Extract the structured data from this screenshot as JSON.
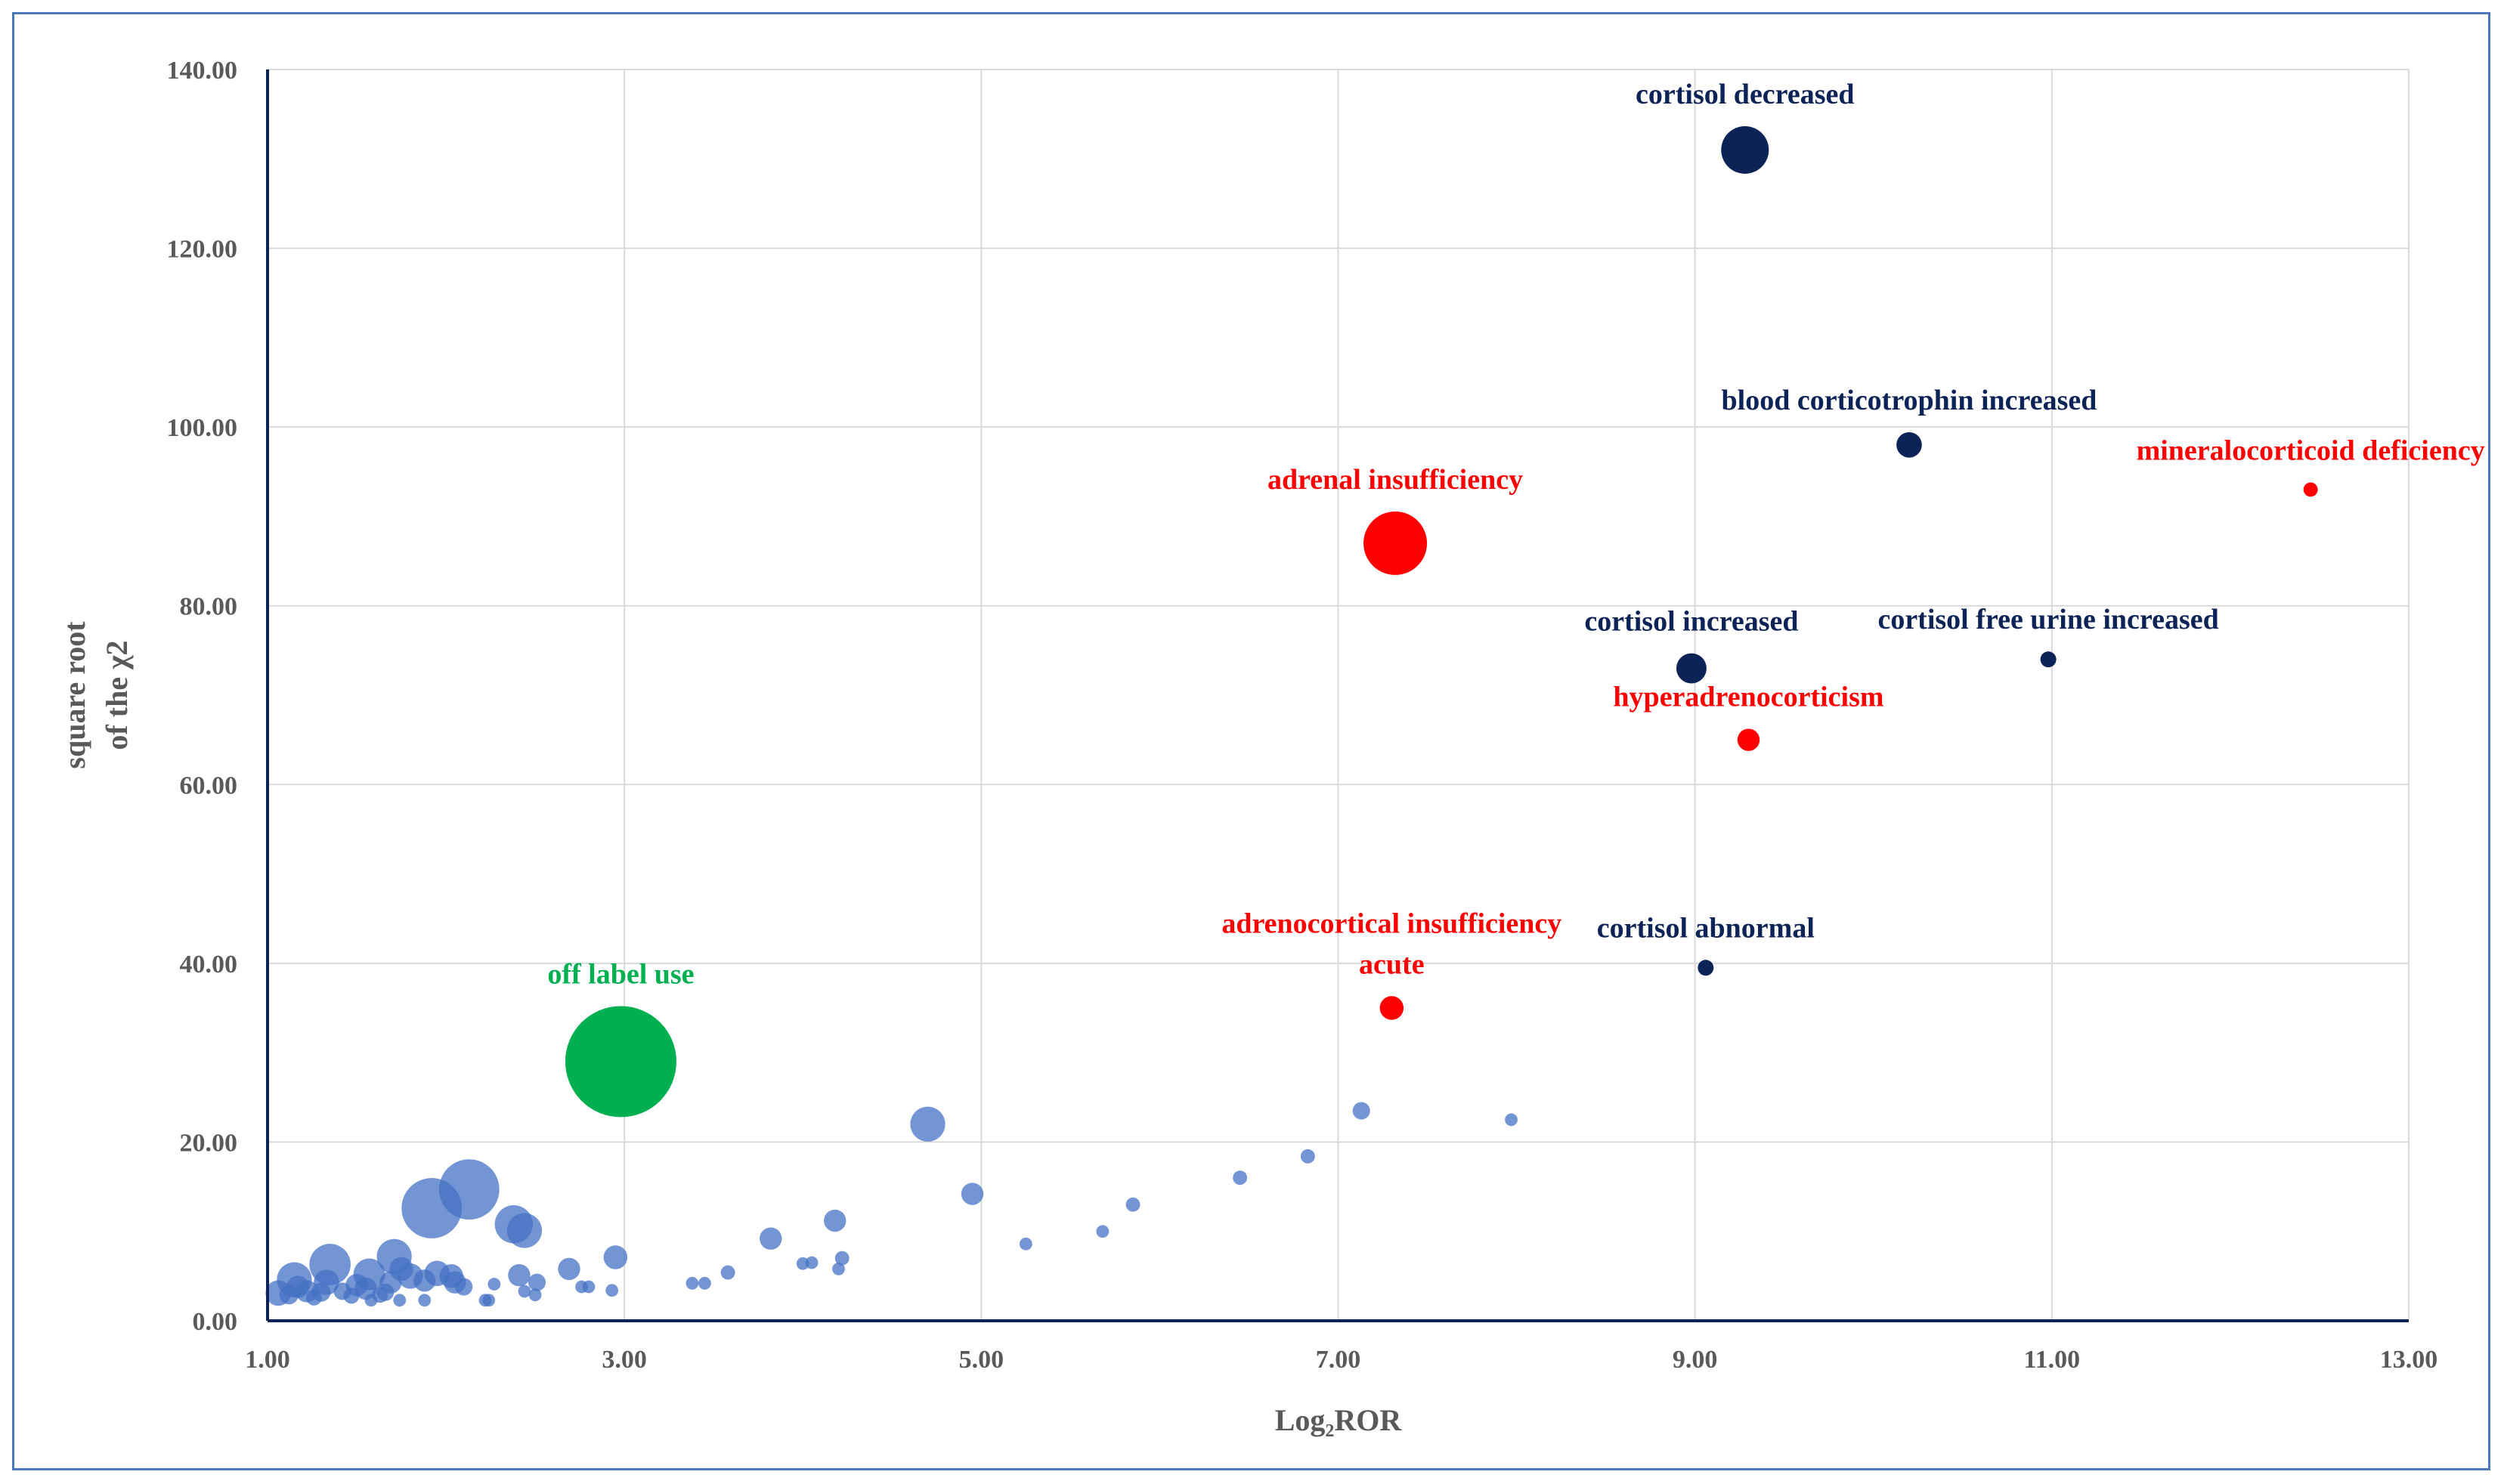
{
  "chart_data": {
    "type": "scatter",
    "subtype": "bubble",
    "xlabel": "Log₂ROR",
    "ylabel_lines": [
      "square root",
      "of the χ2"
    ],
    "xlim": [
      1,
      13
    ],
    "ylim": [
      0,
      140
    ],
    "x_ticks": [
      "1.00",
      "3.00",
      "5.00",
      "7.00",
      "9.00",
      "11.00",
      "13.00"
    ],
    "y_ticks": [
      "0.00",
      "20.00",
      "40.00",
      "60.00",
      "80.00",
      "100.00",
      "120.00",
      "140.00"
    ],
    "grid": true,
    "colors": {
      "background_points": "#4472c4",
      "endocrine_lab": "#0b2357",
      "adrenal_disorder": "#ff0000",
      "off_label": "#00b050",
      "gridline": "#d9d9d9",
      "axis": "#0b2357"
    },
    "highlighted": [
      {
        "label_lines": [
          "cortisol decreased"
        ],
        "x": 9.28,
        "y": 131,
        "r": 15,
        "color": "#0b2357",
        "label_anchor": "above"
      },
      {
        "label_lines": [
          "blood corticotrophin increased"
        ],
        "x": 10.2,
        "y": 98,
        "r": 8,
        "color": "#0b2357",
        "label_anchor": "above"
      },
      {
        "label_lines": [
          "mineralocorticoid deficiency"
        ],
        "x": 12.45,
        "y": 93,
        "r": 4.5,
        "color": "#ff0000",
        "label_anchor": "above"
      },
      {
        "label_lines": [
          "adrenal insufficiency"
        ],
        "x": 7.32,
        "y": 87,
        "r": 20,
        "color": "#ff0000",
        "label_anchor": "above"
      },
      {
        "label_lines": [
          "cortisol increased"
        ],
        "x": 8.98,
        "y": 73,
        "r": 9.5,
        "color": "#0b2357",
        "label_anchor": "above"
      },
      {
        "label_lines": [
          "cortisol free urine increased"
        ],
        "x": 10.98,
        "y": 74,
        "r": 5,
        "color": "#0b2357",
        "label_anchor": "above"
      },
      {
        "label_lines": [
          "hyperadrenocorticism"
        ],
        "x": 9.3,
        "y": 65,
        "r": 7,
        "color": "#ff0000",
        "label_anchor": "above"
      },
      {
        "label_lines": [
          "cortisol abnormal"
        ],
        "x": 9.06,
        "y": 39.5,
        "r": 5,
        "color": "#0b2357",
        "label_anchor": "above"
      },
      {
        "label_lines": [
          "adrenocortical insufficiency",
          "acute"
        ],
        "x": 7.3,
        "y": 35,
        "r": 7.5,
        "color": "#ff0000",
        "label_anchor": "above"
      },
      {
        "label_lines": [
          "off label use"
        ],
        "x": 2.98,
        "y": 29,
        "r": 35,
        "color": "#00b050",
        "label_anchor": "above"
      }
    ],
    "background_series": [
      {
        "x": 4.7,
        "y": 22,
        "r": 11
      },
      {
        "x": 4.95,
        "y": 14.2,
        "r": 7
      },
      {
        "x": 5.25,
        "y": 8.6,
        "r": 4
      },
      {
        "x": 5.68,
        "y": 10,
        "r": 4
      },
      {
        "x": 5.85,
        "y": 13,
        "r": 4.5
      },
      {
        "x": 6.45,
        "y": 16,
        "r": 4.5
      },
      {
        "x": 6.83,
        "y": 18.4,
        "r": 4.5
      },
      {
        "x": 7.13,
        "y": 23.5,
        "r": 5.5
      },
      {
        "x": 7.97,
        "y": 22.5,
        "r": 4
      },
      {
        "x": 4.18,
        "y": 11.2,
        "r": 7
      },
      {
        "x": 4.22,
        "y": 7,
        "r": 4.5
      },
      {
        "x": 4.2,
        "y": 5.8,
        "r": 4
      },
      {
        "x": 4.05,
        "y": 6.5,
        "r": 4
      },
      {
        "x": 4.0,
        "y": 6.4,
        "r": 4
      },
      {
        "x": 3.82,
        "y": 9.2,
        "r": 7
      },
      {
        "x": 3.58,
        "y": 5.4,
        "r": 4.5
      },
      {
        "x": 3.45,
        "y": 4.2,
        "r": 4
      },
      {
        "x": 3.38,
        "y": 4.2,
        "r": 4
      },
      {
        "x": 2.95,
        "y": 7.1,
        "r": 7.5
      },
      {
        "x": 2.93,
        "y": 3.4,
        "r": 4
      },
      {
        "x": 2.8,
        "y": 3.8,
        "r": 4
      },
      {
        "x": 2.76,
        "y": 3.8,
        "r": 4
      },
      {
        "x": 2.69,
        "y": 5.8,
        "r": 7
      },
      {
        "x": 2.51,
        "y": 4.3,
        "r": 5.5
      },
      {
        "x": 2.5,
        "y": 2.9,
        "r": 4
      },
      {
        "x": 2.44,
        "y": 3.3,
        "r": 4
      },
      {
        "x": 2.41,
        "y": 5.1,
        "r": 7
      },
      {
        "x": 2.44,
        "y": 10.1,
        "r": 11
      },
      {
        "x": 2.38,
        "y": 10.8,
        "r": 12
      },
      {
        "x": 2.27,
        "y": 4.1,
        "r": 4
      },
      {
        "x": 2.24,
        "y": 2.3,
        "r": 4
      },
      {
        "x": 2.22,
        "y": 2.3,
        "r": 4
      },
      {
        "x": 2.13,
        "y": 14.7,
        "r": 19
      },
      {
        "x": 2.1,
        "y": 3.8,
        "r": 5.5
      },
      {
        "x": 2.05,
        "y": 4.3,
        "r": 7
      },
      {
        "x": 2.03,
        "y": 5,
        "r": 7.5
      },
      {
        "x": 1.95,
        "y": 5.3,
        "r": 8
      },
      {
        "x": 1.92,
        "y": 12.6,
        "r": 19
      },
      {
        "x": 1.88,
        "y": 4.5,
        "r": 7
      },
      {
        "x": 1.88,
        "y": 2.3,
        "r": 4
      },
      {
        "x": 1.8,
        "y": 5,
        "r": 8
      },
      {
        "x": 1.75,
        "y": 5.8,
        "r": 7.5
      },
      {
        "x": 1.74,
        "y": 2.3,
        "r": 4
      },
      {
        "x": 1.71,
        "y": 7.2,
        "r": 11
      },
      {
        "x": 1.69,
        "y": 4.3,
        "r": 7
      },
      {
        "x": 1.66,
        "y": 3.2,
        "r": 5.5
      },
      {
        "x": 1.63,
        "y": 2.9,
        "r": 5
      },
      {
        "x": 1.58,
        "y": 2.3,
        "r": 4
      },
      {
        "x": 1.57,
        "y": 5.2,
        "r": 10
      },
      {
        "x": 1.55,
        "y": 3.6,
        "r": 7
      },
      {
        "x": 1.5,
        "y": 4,
        "r": 7
      },
      {
        "x": 1.47,
        "y": 2.8,
        "r": 5
      },
      {
        "x": 1.42,
        "y": 3.3,
        "r": 5.5
      },
      {
        "x": 1.35,
        "y": 6.3,
        "r": 13
      },
      {
        "x": 1.33,
        "y": 4.3,
        "r": 8
      },
      {
        "x": 1.3,
        "y": 3.2,
        "r": 6
      },
      {
        "x": 1.26,
        "y": 2.6,
        "r": 5
      },
      {
        "x": 1.22,
        "y": 3.3,
        "r": 7
      },
      {
        "x": 1.17,
        "y": 3.8,
        "r": 7
      },
      {
        "x": 1.15,
        "y": 4.6,
        "r": 11
      },
      {
        "x": 1.12,
        "y": 2.9,
        "r": 6
      },
      {
        "x": 1.06,
        "y": 3.1,
        "r": 8
      }
    ]
  }
}
